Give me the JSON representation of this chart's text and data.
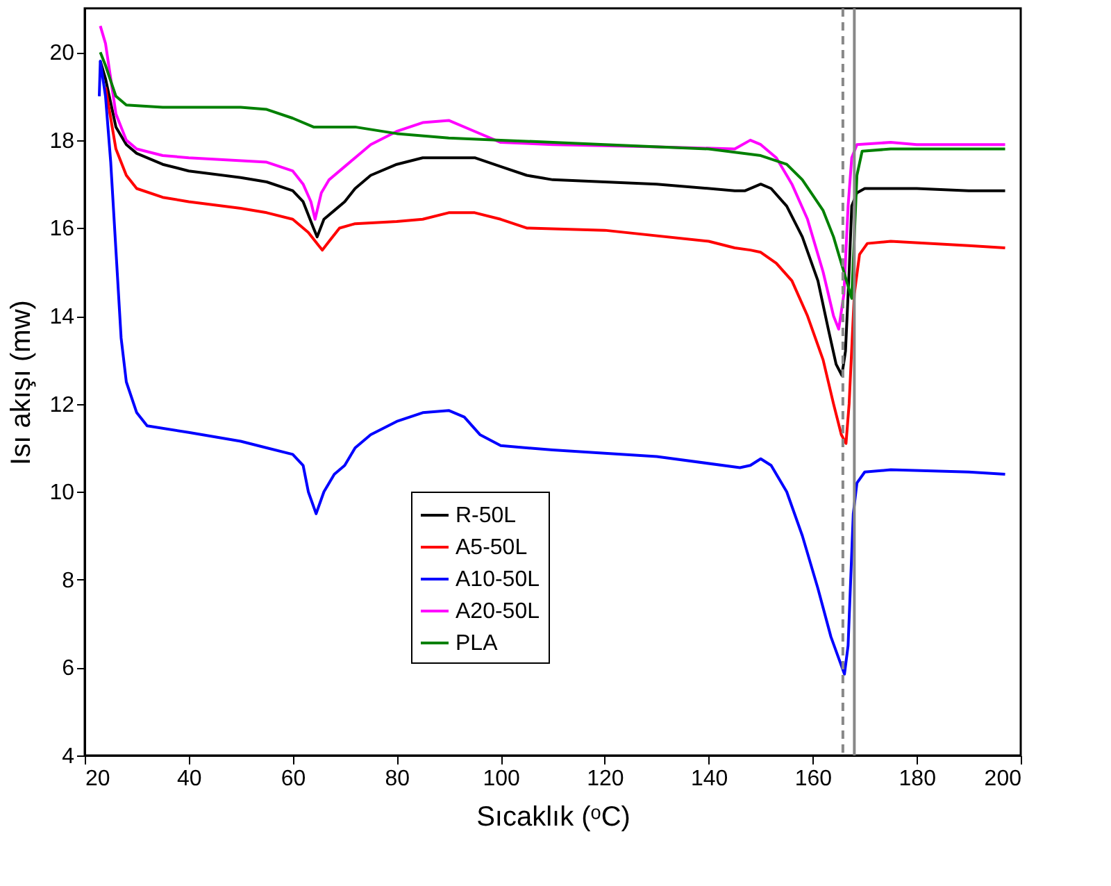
{
  "chart_data": {
    "type": "line",
    "xlabel": "Sıcaklık (ᵒC)",
    "ylabel": "Isı akışı (mw)",
    "xlim": [
      20,
      200
    ],
    "ylim": [
      4,
      21
    ],
    "xticks": [
      20,
      40,
      60,
      80,
      100,
      120,
      140,
      160,
      180,
      200
    ],
    "yticks": [
      4,
      6,
      8,
      10,
      12,
      14,
      16,
      18,
      20
    ],
    "grid": false,
    "legend": "bottom",
    "line_style": "solid",
    "marker": "none",
    "ref_lines": [
      {
        "axis": "x",
        "value": 165.8,
        "label": null,
        "color": "#888888",
        "line_style": "dashed"
      },
      {
        "axis": "x",
        "value": 168,
        "label": null,
        "color": "#888888",
        "line_style": "solid"
      }
    ],
    "series": [
      {
        "name": "R-50L",
        "color": "#000000",
        "x": [
          23,
          24,
          26,
          28,
          30,
          35,
          40,
          50,
          55,
          60,
          62,
          64,
          64.7,
          66,
          68,
          70,
          72,
          75,
          80,
          85,
          95,
          100,
          105,
          110,
          120,
          130,
          145,
          147,
          150,
          152,
          155,
          158,
          161,
          163,
          164.5,
          165.6,
          166.3,
          167,
          167.5,
          168.5,
          170,
          180,
          190,
          197
        ],
        "values": [
          19.8,
          19.4,
          18.3,
          17.9,
          17.7,
          17.45,
          17.3,
          17.15,
          17.05,
          16.85,
          16.6,
          16.0,
          15.8,
          16.2,
          16.4,
          16.6,
          16.9,
          17.2,
          17.45,
          17.6,
          17.6,
          17.4,
          17.2,
          17.1,
          17.05,
          17.0,
          16.85,
          16.85,
          17.0,
          16.9,
          16.5,
          15.8,
          14.8,
          13.7,
          12.9,
          12.65,
          13.2,
          15.0,
          16.5,
          16.8,
          16.9,
          16.9,
          16.85,
          16.85
        ]
      },
      {
        "name": "A5-50L",
        "color": "#ff0000",
        "x": [
          24,
          26,
          28,
          30,
          35,
          40,
          50,
          55,
          60,
          63,
          65,
          65.7,
          67,
          69,
          72,
          80,
          85,
          90,
          95,
          100,
          105,
          120,
          140,
          145,
          148,
          150,
          153,
          156,
          159,
          162,
          164,
          165.5,
          166.4,
          167,
          168,
          169,
          170.5,
          175,
          190,
          197
        ],
        "values": [
          19.2,
          17.8,
          17.2,
          16.9,
          16.7,
          16.6,
          16.45,
          16.35,
          16.2,
          15.9,
          15.6,
          15.5,
          15.7,
          16.0,
          16.1,
          16.15,
          16.2,
          16.35,
          16.35,
          16.2,
          16.0,
          15.95,
          15.7,
          15.55,
          15.5,
          15.45,
          15.2,
          14.8,
          14.0,
          13.0,
          12.0,
          11.3,
          11.1,
          12.0,
          14.5,
          15.4,
          15.65,
          15.7,
          15.6,
          15.55
        ]
      },
      {
        "name": "A10-50L",
        "color": "#0000ff",
        "x": [
          22.8,
          23,
          24,
          25,
          26,
          27,
          28,
          30,
          32,
          40,
          50,
          55,
          60,
          62,
          63,
          64.5,
          66,
          68,
          70,
          72,
          75,
          80,
          85,
          90,
          93,
          96,
          100,
          110,
          130,
          146,
          148,
          150,
          152,
          155,
          158,
          161,
          163.5,
          166.1,
          166.8,
          167.3,
          167.8,
          168.5,
          170,
          175,
          190,
          197
        ],
        "values": [
          19.0,
          19.8,
          19.0,
          17.5,
          15.5,
          13.5,
          12.5,
          11.8,
          11.5,
          11.35,
          11.15,
          11.0,
          10.85,
          10.6,
          10.0,
          9.5,
          10.0,
          10.4,
          10.6,
          11.0,
          11.3,
          11.6,
          11.8,
          11.85,
          11.7,
          11.3,
          11.05,
          10.95,
          10.8,
          10.55,
          10.6,
          10.75,
          10.6,
          10.0,
          9.0,
          7.8,
          6.7,
          5.85,
          6.5,
          8.0,
          9.5,
          10.2,
          10.45,
          10.5,
          10.45,
          10.4
        ]
      },
      {
        "name": "A20-50L",
        "color": "#ff00ff",
        "x": [
          23,
          24,
          26,
          28,
          30,
          35,
          40,
          55,
          60,
          62,
          63.5,
          64.3,
          65.5,
          67,
          70,
          75,
          80,
          85,
          90,
          95,
          100,
          110,
          130,
          145,
          148,
          150,
          153,
          156,
          159,
          162,
          164,
          165,
          166,
          166.8,
          167.5,
          168.5,
          175,
          180,
          197
        ],
        "values": [
          20.6,
          20.2,
          18.6,
          18.0,
          17.8,
          17.65,
          17.6,
          17.5,
          17.3,
          17.0,
          16.6,
          16.2,
          16.8,
          17.1,
          17.4,
          17.9,
          18.2,
          18.4,
          18.45,
          18.2,
          17.95,
          17.9,
          17.85,
          17.8,
          18.0,
          17.9,
          17.6,
          17.0,
          16.2,
          15.0,
          14.0,
          13.7,
          14.5,
          16.5,
          17.6,
          17.9,
          17.95,
          17.9,
          17.9
        ]
      },
      {
        "name": "PLA",
        "color": "#008000",
        "x": [
          23,
          24,
          26,
          28,
          35,
          50,
          55,
          60,
          64,
          68,
          72,
          80,
          90,
          100,
          120,
          140,
          150,
          155,
          158,
          162,
          164,
          166,
          167.5,
          168,
          168.5,
          169.5,
          175,
          180,
          197
        ],
        "values": [
          20.0,
          19.7,
          19.0,
          18.8,
          18.75,
          18.75,
          18.7,
          18.5,
          18.3,
          18.3,
          18.3,
          18.15,
          18.05,
          18.0,
          17.9,
          17.8,
          17.65,
          17.45,
          17.1,
          16.4,
          15.8,
          15.0,
          14.4,
          15.8,
          17.2,
          17.75,
          17.8,
          17.8,
          17.8
        ]
      }
    ]
  }
}
